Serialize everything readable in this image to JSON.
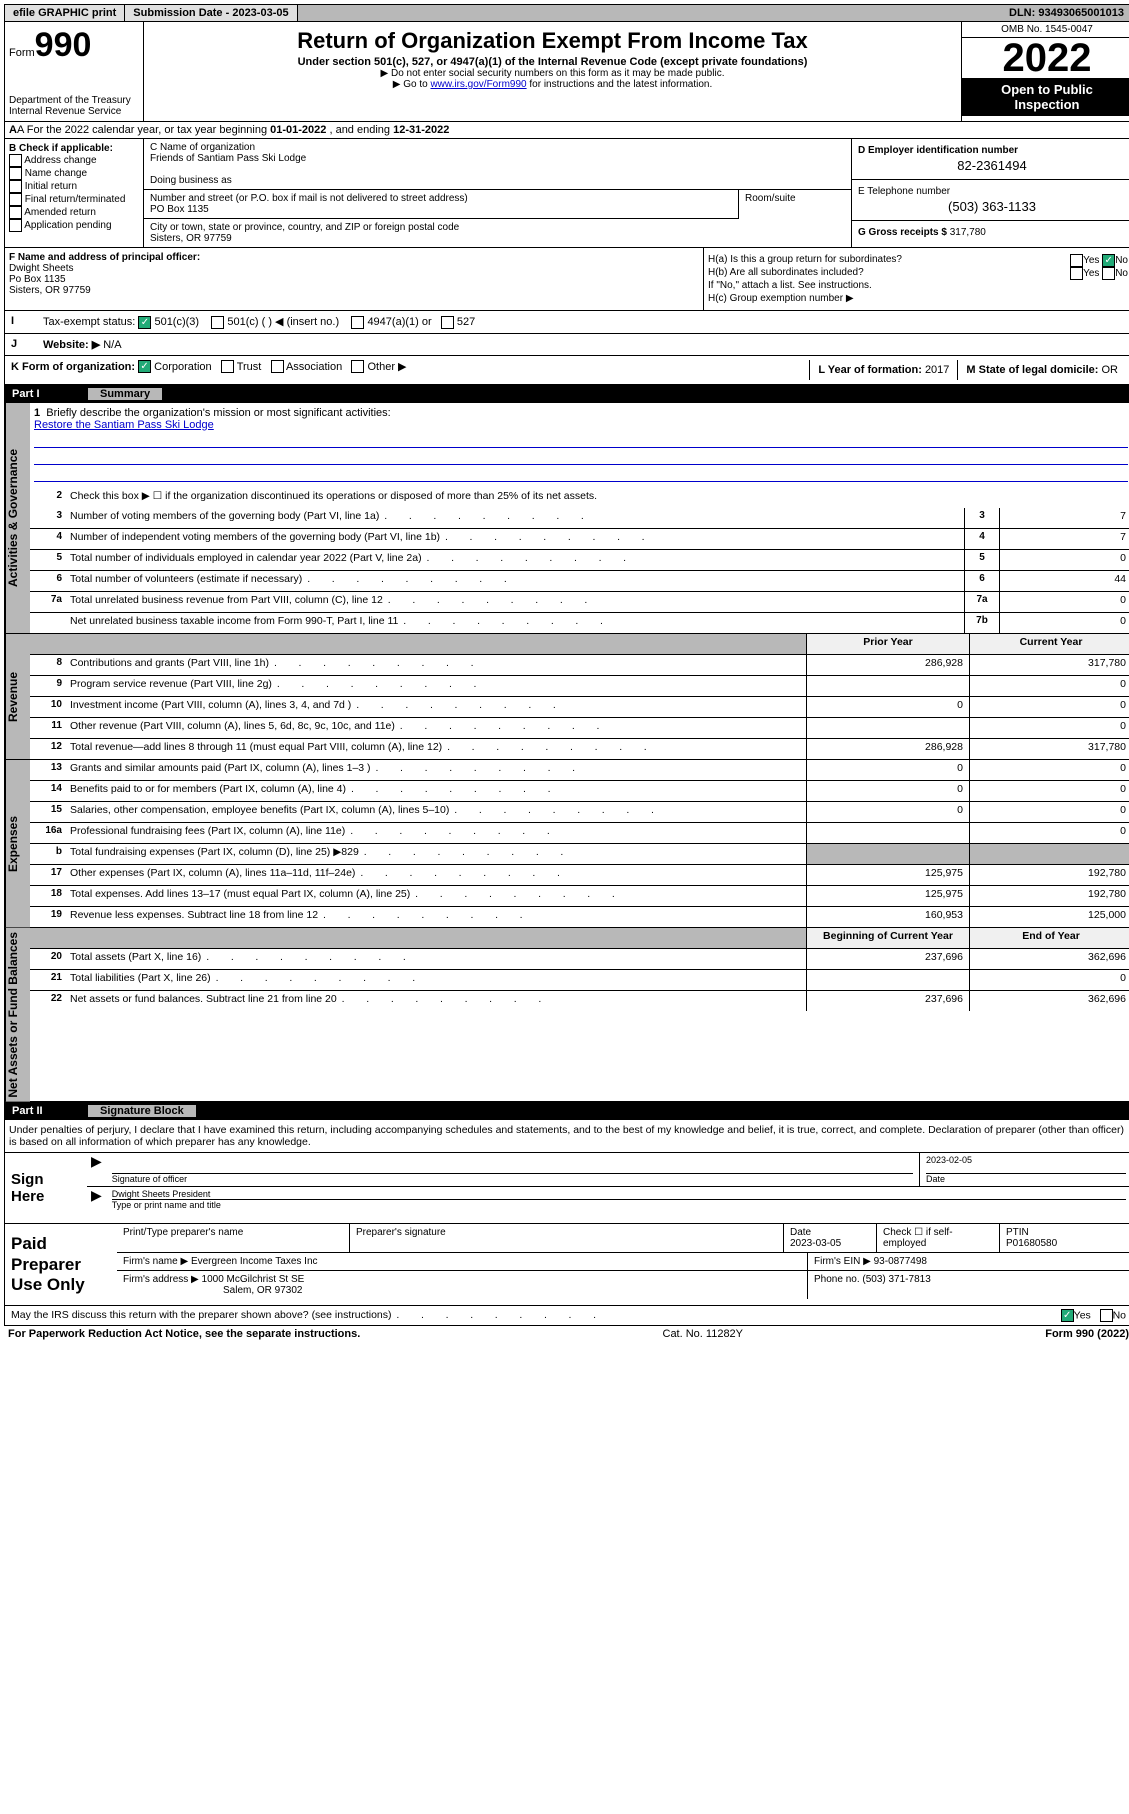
{
  "topbar": {
    "efile": "efile GRAPHIC print",
    "sub_label": "Submission Date - ",
    "sub_date": "2023-03-05",
    "dln_label": "DLN: ",
    "dln": "93493065001013"
  },
  "header": {
    "form_word": "Form",
    "form_num": "990",
    "dept1": "Department of the Treasury",
    "dept2": "Internal Revenue Service",
    "title": "Return of Organization Exempt From Income Tax",
    "sub": "Under section 501(c), 527, or 4947(a)(1) of the Internal Revenue Code (except private foundations)",
    "note1": "▶ Do not enter social security numbers on this form as it may be made public.",
    "note2_pre": "▶ Go to ",
    "note2_link": "www.irs.gov/Form990",
    "note2_post": " for instructions and the latest information.",
    "omb": "OMB No. 1545-0047",
    "year": "2022",
    "open1": "Open to Public",
    "open2": "Inspection"
  },
  "rowA": {
    "pre": "A  For the 2022 calendar year, or tax year beginning ",
    "begin": "01-01-2022",
    "mid": "    , and ending ",
    "end": "12-31-2022"
  },
  "checkB": {
    "title": "B Check if applicable:",
    "items": [
      "Address change",
      "Name change",
      "Initial return",
      "Final return/terminated",
      "Amended return",
      "Application pending"
    ]
  },
  "org": {
    "c_label": "C Name of organization",
    "name": "Friends of Santiam Pass Ski Lodge",
    "dba_label": "Doing business as",
    "addr_label": "Number and street (or P.O. box if mail is not delivered to street address)",
    "room_label": "Room/suite",
    "addr": "PO Box 1135",
    "city_label": "City or town, state or province, country, and ZIP or foreign postal code",
    "city": "Sisters, OR   97759"
  },
  "right": {
    "d_label": "D Employer identification number",
    "ein": "82-2361494",
    "e_label": "E Telephone number",
    "phone": "(503) 363-1133",
    "g_label": "G Gross receipts $ ",
    "gross": "317,780"
  },
  "officer": {
    "f_label": "F Name and address of principal officer:",
    "name": "Dwight Sheets",
    "addr": "Po Box 1135",
    "city": "Sisters, OR   97759"
  },
  "h": {
    "ha": "H(a)  Is this a group return for subordinates?",
    "hb": "H(b)  Are all subordinates included?",
    "hb_note": "If \"No,\" attach a list. See instructions.",
    "hc": "H(c)  Group exemption number ▶"
  },
  "i": {
    "label": "Tax-exempt status:",
    "opt1": "501(c)(3)",
    "opt2": "501(c) (   ) ◀ (insert no.)",
    "opt3": "4947(a)(1) or",
    "opt4": "527"
  },
  "j": {
    "label": "Website: ▶ ",
    "val": "N/A"
  },
  "k": {
    "label": "K Form of organization:",
    "opts": [
      "Corporation",
      "Trust",
      "Association",
      "Other ▶"
    ],
    "l_label": "L Year of formation: ",
    "l_val": "2017",
    "m_label": "M State of legal domicile: ",
    "m_val": "OR"
  },
  "part1": {
    "num": "Part I",
    "title": "Summary"
  },
  "mission": {
    "q": "Briefly describe the organization's mission or most significant activities:",
    "text": "Restore the Santiam Pass Ski Lodge"
  },
  "line2": "Check this box ▶ ☐  if the organization discontinued its operations or disposed of more than 25% of its net assets.",
  "lines_gov": [
    {
      "n": "3",
      "d": "Number of voting members of the governing body (Part VI, line 1a)",
      "bn": "3",
      "v": "7"
    },
    {
      "n": "4",
      "d": "Number of independent voting members of the governing body (Part VI, line 1b)",
      "bn": "4",
      "v": "7"
    },
    {
      "n": "5",
      "d": "Total number of individuals employed in calendar year 2022 (Part V, line 2a)",
      "bn": "5",
      "v": "0"
    },
    {
      "n": "6",
      "d": "Total number of volunteers (estimate if necessary)",
      "bn": "6",
      "v": "44"
    },
    {
      "n": "7a",
      "d": "Total unrelated business revenue from Part VIII, column (C), line 12",
      "bn": "7a",
      "v": "0"
    },
    {
      "n": "",
      "d": "Net unrelated business taxable income from Form 990-T, Part I, line 11",
      "bn": "7b",
      "v": "0"
    }
  ],
  "cols": {
    "prior": "Prior Year",
    "curr": "Current Year"
  },
  "lines_rev": [
    {
      "n": "8",
      "d": "Contributions and grants (Part VIII, line 1h)",
      "p": "286,928",
      "c": "317,780"
    },
    {
      "n": "9",
      "d": "Program service revenue (Part VIII, line 2g)",
      "p": "",
      "c": "0"
    },
    {
      "n": "10",
      "d": "Investment income (Part VIII, column (A), lines 3, 4, and 7d )",
      "p": "0",
      "c": "0"
    },
    {
      "n": "11",
      "d": "Other revenue (Part VIII, column (A), lines 5, 6d, 8c, 9c, 10c, and 11e)",
      "p": "",
      "c": "0"
    },
    {
      "n": "12",
      "d": "Total revenue—add lines 8 through 11 (must equal Part VIII, column (A), line 12)",
      "p": "286,928",
      "c": "317,780"
    }
  ],
  "lines_exp": [
    {
      "n": "13",
      "d": "Grants and similar amounts paid (Part IX, column (A), lines 1–3 )",
      "p": "0",
      "c": "0"
    },
    {
      "n": "14",
      "d": "Benefits paid to or for members (Part IX, column (A), line 4)",
      "p": "0",
      "c": "0"
    },
    {
      "n": "15",
      "d": "Salaries, other compensation, employee benefits (Part IX, column (A), lines 5–10)",
      "p": "0",
      "c": "0"
    },
    {
      "n": "16a",
      "d": "Professional fundraising fees (Part IX, column (A), line 11e)",
      "p": "",
      "c": "0"
    },
    {
      "n": "b",
      "d": "Total fundraising expenses (Part IX, column (D), line 25) ▶829",
      "p": "grey",
      "c": "grey"
    },
    {
      "n": "17",
      "d": "Other expenses (Part IX, column (A), lines 11a–11d, 11f–24e)",
      "p": "125,975",
      "c": "192,780"
    },
    {
      "n": "18",
      "d": "Total expenses. Add lines 13–17 (must equal Part IX, column (A), line 25)",
      "p": "125,975",
      "c": "192,780"
    },
    {
      "n": "19",
      "d": "Revenue less expenses. Subtract line 18 from line 12",
      "p": "160,953",
      "c": "125,000"
    }
  ],
  "cols2": {
    "prior": "Beginning of Current Year",
    "curr": "End of Year"
  },
  "lines_net": [
    {
      "n": "20",
      "d": "Total assets (Part X, line 16)",
      "p": "237,696",
      "c": "362,696"
    },
    {
      "n": "21",
      "d": "Total liabilities (Part X, line 26)",
      "p": "",
      "c": "0"
    },
    {
      "n": "22",
      "d": "Net assets or fund balances. Subtract line 21 from line 20",
      "p": "237,696",
      "c": "362,696"
    }
  ],
  "vtabs": {
    "gov": "Activities & Governance",
    "rev": "Revenue",
    "exp": "Expenses",
    "net": "Net Assets or Fund Balances"
  },
  "part2": {
    "num": "Part II",
    "title": "Signature Block"
  },
  "sig_text": "Under penalties of perjury, I declare that I have examined this return, including accompanying schedules and statements, and to the best of my knowledge and belief, it is true, correct, and complete. Declaration of preparer (other than officer) is based on all information of which preparer has any knowledge.",
  "sign": {
    "left": "Sign Here",
    "sig_label": "Signature of officer",
    "date_label": "Date",
    "date": "2023-02-05",
    "name": "Dwight Sheets  President",
    "name_label": "Type or print name and title"
  },
  "prep": {
    "left": "Paid Preparer Use Only",
    "h1": "Print/Type preparer's name",
    "h2": "Preparer's signature",
    "h3": "Date",
    "h3v": "2023-03-05",
    "h4": "Check ☐ if self-employed",
    "h5": "PTIN",
    "h5v": "P01680580",
    "firm_label": "Firm's name     ▶ ",
    "firm": "Evergreen Income Taxes Inc",
    "ein_label": "Firm's EIN ▶ ",
    "ein": "93-0877498",
    "addr_label": "Firm's address ▶ ",
    "addr1": "1000 McGilchrist St SE",
    "addr2": "Salem, OR   97302",
    "phone_label": "Phone no. ",
    "phone": "(503) 371-7813"
  },
  "discuss": "May the IRS discuss this return with the preparer shown above? (see instructions)",
  "bottom": {
    "left": "For Paperwork Reduction Act Notice, see the separate instructions.",
    "mid": "Cat. No. 11282Y",
    "right": "Form 990 (2022)"
  }
}
